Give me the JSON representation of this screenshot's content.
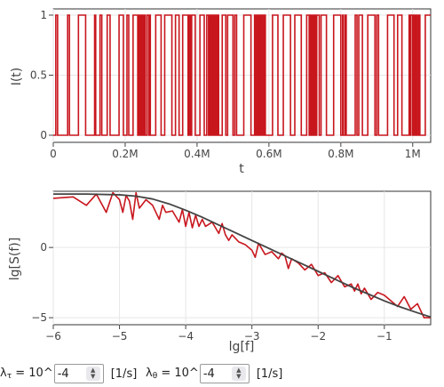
{
  "top_plot": {
    "ylabel": "I(t)",
    "xlabel": "t",
    "x_ticks": [
      "0",
      "0.2M",
      "0.4M",
      "0.6M",
      "0.8M",
      "1M"
    ],
    "y_ticks": [
      "0",
      "0.5",
      "1"
    ],
    "line_color": "#c8161d"
  },
  "bottom_plot": {
    "ylabel": "lg[S(f)]",
    "xlabel": "lg[f]",
    "x_ticks": [
      "−6",
      "−5",
      "−4",
      "−3",
      "−2",
      "−1"
    ],
    "y_ticks": [
      "−5",
      "0"
    ],
    "data_color": "#c8161d",
    "fit_color": "#444444"
  },
  "chart_data": [
    {
      "type": "line",
      "xlabel": "t",
      "ylabel": "I(t)",
      "xlim": [
        0,
        1050000
      ],
      "ylim": [
        0,
        1
      ],
      "x_ticks": [
        "0",
        "0.2M",
        "0.4M",
        "0.6M",
        "0.8M",
        "1M"
      ],
      "y_ticks": [
        "0",
        "0.5",
        "1"
      ],
      "series": [
        {
          "step": true,
          "transitions": [
            0,
            7000,
            12000,
            40000,
            45000,
            70000,
            90000,
            115000,
            118000,
            130000,
            135000,
            150000,
            158000,
            183000,
            195000,
            205000,
            210000,
            222000,
            235000,
            237000,
            239000,
            242000,
            244000,
            247000,
            250000,
            252000,
            255000,
            260000,
            265000,
            267000,
            270000,
            285000,
            300000,
            310000,
            330000,
            340000,
            350000,
            360000,
            375000,
            378000,
            382000,
            385000,
            395000,
            408000,
            420000,
            427000,
            432000,
            434000,
            436000,
            438000,
            441000,
            443000,
            446000,
            448000,
            450000,
            452000,
            455000,
            457000,
            460000,
            470000,
            480000,
            485000,
            500000,
            505000,
            510000,
            530000,
            550000,
            560000,
            563000,
            566000,
            569000,
            572000,
            575000,
            578000,
            582000,
            586000,
            590000,
            610000,
            625000,
            640000,
            660000,
            672000,
            690000,
            705000,
            712000,
            715000,
            718000,
            721000,
            724000,
            727000,
            730000,
            733000,
            740000,
            745000,
            760000,
            780000,
            800000,
            805000,
            807000,
            812000,
            815000,
            840000,
            845000,
            850000,
            860000,
            875000,
            895000,
            900000,
            905000,
            930000,
            948000,
            958000,
            970000,
            990000,
            992000,
            995000,
            1000000,
            1003000,
            1006000,
            1010000,
            1013000,
            1017000,
            1020000,
            1035000
          ],
          "start_level": 0
        }
      ]
    },
    {
      "type": "line",
      "xlabel": "lg[f]",
      "ylabel": "lg[S(f)]",
      "xlim": [
        -6,
        -0.3
      ],
      "ylim": [
        -5.5,
        4
      ],
      "x_ticks": [
        "−6",
        "−5",
        "−4",
        "−3",
        "−2",
        "−1"
      ],
      "y_ticks": [
        "−5",
        "0"
      ],
      "series": [
        {
          "role": "data",
          "color": "#c8161d",
          "x": [
            -6.0,
            -5.7,
            -5.5,
            -5.35,
            -5.2,
            -5.1,
            -5.0,
            -4.95,
            -4.9,
            -4.85,
            -4.8,
            -4.75,
            -4.7,
            -4.6,
            -4.5,
            -4.4,
            -4.35,
            -4.3,
            -4.2,
            -4.1,
            -4.05,
            -4.0,
            -3.95,
            -3.9,
            -3.85,
            -3.8,
            -3.75,
            -3.7,
            -3.6,
            -3.5,
            -3.45,
            -3.4,
            -3.35,
            -3.3,
            -3.2,
            -3.1,
            -3.0,
            -2.95,
            -2.9,
            -2.8,
            -2.7,
            -2.6,
            -2.55,
            -2.5,
            -2.45,
            -2.4,
            -2.3,
            -2.2,
            -2.1,
            -2.0,
            -1.9,
            -1.8,
            -1.7,
            -1.6,
            -1.5,
            -1.45,
            -1.4,
            -1.35,
            -1.3,
            -1.2,
            -1.1,
            -1.0,
            -0.9,
            -0.8,
            -0.7,
            -0.6,
            -0.5,
            -0.4,
            -0.3
          ],
          "y": [
            3.5,
            3.6,
            3.0,
            3.8,
            2.5,
            3.9,
            3.4,
            2.5,
            3.7,
            3.3,
            2.0,
            3.9,
            2.8,
            3.4,
            3.0,
            2.0,
            3.0,
            2.5,
            2.6,
            1.8,
            2.7,
            1.5,
            2.5,
            1.4,
            2.3,
            1.5,
            2.0,
            1.5,
            1.8,
            1.0,
            1.7,
            0.9,
            0.5,
            0.9,
            0.4,
            0.2,
            -0.2,
            -0.7,
            0.3,
            -0.5,
            -0.3,
            -0.8,
            -0.4,
            -0.6,
            -1.5,
            -0.8,
            -1.1,
            -1.6,
            -1.2,
            -2.0,
            -1.8,
            -2.5,
            -2.0,
            -2.8,
            -2.6,
            -3.1,
            -2.6,
            -3.3,
            -2.9,
            -3.7,
            -3.2,
            -3.4,
            -3.8,
            -4.2,
            -3.5,
            -4.4,
            -4.0,
            -5.0,
            -5.0
          ]
        },
        {
          "role": "fit",
          "color": "#444444",
          "x": [
            -6.0,
            -5.5,
            -5.0,
            -4.75,
            -4.5,
            -4.25,
            -4.0,
            -3.75,
            -3.5,
            -3.25,
            -3.0,
            -2.75,
            -2.5,
            -2.25,
            -2.0,
            -1.75,
            -1.5,
            -1.25,
            -1.0,
            -0.75,
            -0.5,
            -0.3
          ],
          "y": [
            3.8,
            3.8,
            3.75,
            3.65,
            3.45,
            3.1,
            2.65,
            2.15,
            1.6,
            1.05,
            0.5,
            -0.05,
            -0.6,
            -1.15,
            -1.7,
            -2.25,
            -2.8,
            -3.3,
            -3.8,
            -4.25,
            -4.65,
            -4.95
          ]
        }
      ]
    }
  ],
  "controls": {
    "lambda_tau": {
      "symbol": "λ",
      "subscript": "τ",
      "prefix": " = 10^",
      "value": "-4",
      "unit": "[1/s]"
    },
    "lambda_theta": {
      "symbol": "λ",
      "subscript": "θ",
      "prefix": " = 10^",
      "value": "-4",
      "unit": "[1/s]"
    },
    "spinner_up": "▲",
    "spinner_down": "▼"
  }
}
